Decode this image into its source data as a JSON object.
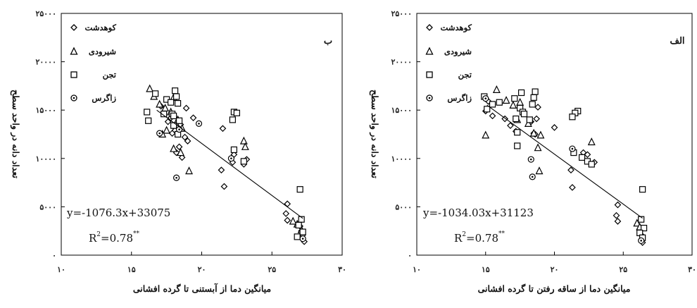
{
  "chart_data": [
    {
      "type": "scatter",
      "panel_label": "ب",
      "xlabel": "میانگین دما از آبستنی تا گرده افشانی",
      "ylabel": "تعداد دانه در واحد سطح",
      "xlim": [
        10,
        30
      ],
      "ylim": [
        0,
        25000
      ],
      "x_ticks": [
        10,
        15,
        20,
        25,
        30
      ],
      "x_tick_labels": [
        "۱۰",
        "۱۵",
        "۲۰",
        "۲۵",
        "۳۰"
      ],
      "y_ticks": [
        0,
        5000,
        10000,
        15000,
        20000,
        25000
      ],
      "y_tick_labels": [
        "۰",
        "۵۰۰۰",
        "۱۰۰۰۰",
        "۱۵۰۰۰",
        "۲۰۰۰۰",
        "۲۵۰۰۰"
      ],
      "equation": "y=-1076.3x+33075",
      "r2_label": "R",
      "r2_value": "=0.78",
      "r2_sup": "2",
      "r2_stars": "**",
      "trendline": {
        "slope": -1076.3,
        "intercept": 33075,
        "x_range": [
          16.8,
          27.2
        ]
      },
      "legend_position": "top-right",
      "series": [
        {
          "name": "کوهدشت",
          "marker": "diamond",
          "points": [
            [
              17.3,
              14700
            ],
            [
              17.6,
              13800
            ],
            [
              18.0,
              13300
            ],
            [
              18.3,
              12800
            ],
            [
              18.5,
              13500
            ],
            [
              18.8,
              12200
            ],
            [
              19.0,
              11800
            ],
            [
              18.2,
              10600
            ],
            [
              18.6,
              10100
            ],
            [
              17.8,
              14200
            ],
            [
              18.1,
              12900
            ],
            [
              17.1,
              15400
            ],
            [
              19.4,
              14200
            ],
            [
              21.5,
              13100
            ],
            [
              21.4,
              8800
            ],
            [
              21.6,
              7100
            ],
            [
              22.3,
              10400
            ],
            [
              22.2,
              9600
            ],
            [
              23.0,
              9400
            ],
            [
              23.2,
              9900
            ],
            [
              26.1,
              5300
            ],
            [
              26.0,
              4300
            ],
            [
              26.1,
              3600
            ],
            [
              27.0,
              3000
            ],
            [
              27.1,
              2500
            ],
            [
              27.2,
              2100
            ],
            [
              27.3,
              1400
            ],
            [
              18.4,
              11200
            ],
            [
              18.9,
              15200
            ],
            [
              17.9,
              12600
            ]
          ]
        },
        {
          "name": "شیرودی",
          "marker": "triangle",
          "points": [
            [
              16.3,
              17200
            ],
            [
              16.6,
              16400
            ],
            [
              17.0,
              15600
            ],
            [
              17.4,
              15200
            ],
            [
              17.8,
              14800
            ],
            [
              18.3,
              14000
            ],
            [
              18.6,
              13100
            ],
            [
              18.0,
              11000
            ],
            [
              18.5,
              10600
            ],
            [
              19.1,
              8700
            ],
            [
              17.5,
              12900
            ],
            [
              17.2,
              12500
            ],
            [
              23.0,
              11800
            ],
            [
              23.1,
              11200
            ],
            [
              26.5,
              3500
            ],
            [
              26.8,
              3200
            ],
            [
              27.1,
              2600
            ],
            [
              18.0,
              16300
            ]
          ]
        },
        {
          "name": "تجن",
          "marker": "square",
          "points": [
            [
              16.1,
              14800
            ],
            [
              16.2,
              13900
            ],
            [
              16.7,
              16700
            ],
            [
              17.3,
              14600
            ],
            [
              17.5,
              16100
            ],
            [
              17.8,
              15800
            ],
            [
              17.9,
              14600
            ],
            [
              18.0,
              14400
            ],
            [
              18.1,
              17000
            ],
            [
              18.2,
              16400
            ],
            [
              18.3,
              15700
            ],
            [
              18.4,
              13900
            ],
            [
              18.3,
              12500
            ],
            [
              22.3,
              14800
            ],
            [
              22.5,
              14700
            ],
            [
              22.2,
              14000
            ],
            [
              22.3,
              10900
            ],
            [
              23.0,
              9700
            ],
            [
              27.0,
              6800
            ],
            [
              27.1,
              3700
            ],
            [
              26.9,
              3100
            ],
            [
              27.2,
              2400
            ],
            [
              26.8,
              1900
            ],
            [
              18.0,
              13400
            ]
          ]
        },
        {
          "name": "زاگرس",
          "marker": "circle",
          "points": [
            [
              18.2,
              8000
            ],
            [
              19.8,
              13600
            ],
            [
              17.0,
              12600
            ],
            [
              18.4,
              13000
            ],
            [
              22.1,
              10000
            ],
            [
              27.2,
              1700
            ]
          ]
        }
      ]
    },
    {
      "type": "scatter",
      "panel_label": "الف",
      "xlabel": "میانگین دما از ساقه رفتن تا گرده افشانی",
      "ylabel": "تعداد دانه در واحد سطح",
      "xlim": [
        10,
        30
      ],
      "ylim": [
        0,
        25000
      ],
      "x_ticks": [
        10,
        15,
        20,
        25,
        30
      ],
      "x_tick_labels": [
        "۱۰",
        "۱۵",
        "۲۰",
        "۲۵",
        "۳۰"
      ],
      "y_ticks": [
        0,
        5000,
        10000,
        15000,
        20000,
        25000
      ],
      "y_tick_labels": [
        "۰",
        "۵۰۰۰",
        "۱۰۰۰۰",
        "۱۵۰۰۰",
        "۲۰۰۰۰",
        "۲۵۰۰۰"
      ],
      "equation": "y=-1034.03x+31123",
      "r2_label": "R",
      "r2_value": "=0.78",
      "r2_sup": "2",
      "r2_stars": "**",
      "trendline": {
        "slope": -1034.03,
        "intercept": 31123,
        "x_range": [
          15.1,
          26.4
        ]
      },
      "legend_position": "top-right",
      "series": [
        {
          "name": "کوهدشت",
          "marker": "diamond",
          "points": [
            [
              15.0,
              14900
            ],
            [
              15.2,
              15900
            ],
            [
              15.5,
              14400
            ],
            [
              16.4,
              14100
            ],
            [
              17.2,
              12800
            ],
            [
              18.3,
              13800
            ],
            [
              18.5,
              12600
            ],
            [
              18.8,
              15300
            ],
            [
              18.7,
              14100
            ],
            [
              20.0,
              13200
            ],
            [
              21.2,
              8800
            ],
            [
              21.3,
              7000
            ],
            [
              22.1,
              10600
            ],
            [
              22.4,
              10400
            ],
            [
              22.9,
              9600
            ],
            [
              24.6,
              5200
            ],
            [
              24.5,
              4100
            ],
            [
              24.6,
              3500
            ],
            [
              26.2,
              2700
            ],
            [
              26.3,
              2100
            ],
            [
              26.4,
              1300
            ],
            [
              18.6,
              12500
            ],
            [
              16.8,
              13400
            ]
          ]
        },
        {
          "name": "شیرودی",
          "marker": "triangle",
          "points": [
            [
              15.0,
              12400
            ],
            [
              15.8,
              17100
            ],
            [
              16.5,
              16000
            ],
            [
              17.0,
              15500
            ],
            [
              17.3,
              14000
            ],
            [
              18.1,
              13600
            ],
            [
              18.5,
              12600
            ],
            [
              18.8,
              11100
            ],
            [
              18.9,
              8700
            ],
            [
              19.0,
              12400
            ],
            [
              22.7,
              11700
            ],
            [
              26.0,
              3300
            ],
            [
              26.2,
              2900
            ],
            [
              17.5,
              15800
            ]
          ]
        },
        {
          "name": "تجن",
          "marker": "square",
          "points": [
            [
              14.9,
              16400
            ],
            [
              15.1,
              15100
            ],
            [
              15.5,
              15600
            ],
            [
              16.0,
              15800
            ],
            [
              17.1,
              16200
            ],
            [
              17.2,
              14100
            ],
            [
              17.3,
              12700
            ],
            [
              17.5,
              15200
            ],
            [
              17.6,
              16800
            ],
            [
              17.7,
              14800
            ],
            [
              17.8,
              14600
            ],
            [
              18.2,
              14000
            ],
            [
              18.4,
              15600
            ],
            [
              18.5,
              16300
            ],
            [
              18.6,
              16900
            ],
            [
              17.3,
              11300
            ],
            [
              21.7,
              14900
            ],
            [
              21.5,
              14700
            ],
            [
              21.3,
              14300
            ],
            [
              21.4,
              10600
            ],
            [
              22.0,
              10100
            ],
            [
              22.4,
              9700
            ],
            [
              22.7,
              9400
            ],
            [
              26.4,
              6800
            ],
            [
              26.3,
              3700
            ],
            [
              26.5,
              2800
            ],
            [
              26.2,
              2300
            ],
            [
              26.4,
              1800
            ]
          ]
        },
        {
          "name": "زاگرس",
          "marker": "circle",
          "points": [
            [
              15.0,
              16200
            ],
            [
              18.3,
              9900
            ],
            [
              18.4,
              8100
            ],
            [
              21.3,
              11000
            ],
            [
              26.3,
              1500
            ]
          ]
        }
      ]
    }
  ]
}
